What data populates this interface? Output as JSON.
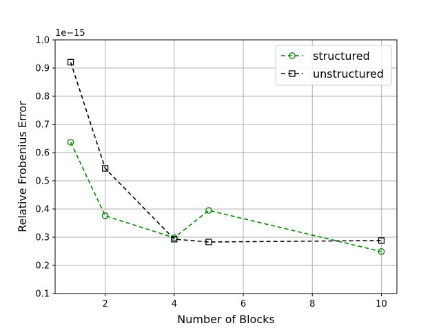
{
  "chart_data": {
    "type": "line",
    "title": "",
    "xlabel": "Number of Blocks",
    "ylabel": "Relative Frobenius Error",
    "y_offset_label": "1e−15",
    "xlim": [
      0.55,
      10.45
    ],
    "ylim": [
      0.1,
      1.0
    ],
    "x_ticks": [
      2,
      4,
      6,
      8,
      10
    ],
    "y_ticks": [
      0.1,
      0.2,
      0.3,
      0.4,
      0.5,
      0.6,
      0.7,
      0.8,
      0.9,
      1.0
    ],
    "x_tick_labels": [
      "2",
      "4",
      "6",
      "8",
      "10"
    ],
    "y_tick_labels": [
      "0.1",
      "0.2",
      "0.3",
      "0.4",
      "0.5",
      "0.6",
      "0.7",
      "0.8",
      "0.9",
      "1.0"
    ],
    "grid": true,
    "legend_position": "top-right",
    "series": [
      {
        "name": "structured",
        "color": "#008000",
        "marker": "circle",
        "line_style": "dashed",
        "x": [
          1,
          2,
          4,
          5,
          10
        ],
        "y": [
          0.637,
          0.376,
          0.298,
          0.395,
          0.249
        ]
      },
      {
        "name": "unstructured",
        "color": "#000000",
        "marker": "square",
        "line_style": "dashed",
        "x": [
          1,
          2,
          4,
          5,
          10
        ],
        "y": [
          0.921,
          0.544,
          0.293,
          0.283,
          0.288
        ]
      }
    ]
  }
}
